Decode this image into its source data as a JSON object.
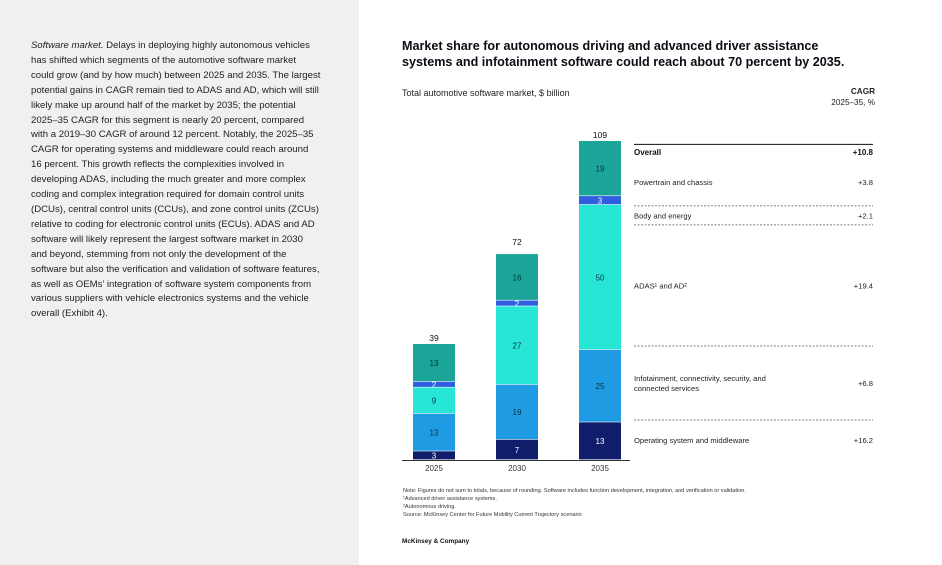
{
  "body_text": {
    "lead": "Software market.",
    "text": " Delays in deploying highly autonomous vehicles has shifted which segments of the automotive software market could grow (and by how much) between 2025 and 2035. The largest potential gains in CAGR remain tied to ADAS and AD, which will still likely make up around half of the market by 2035; the potential 2025–35 CAGR for this segment is nearly 20 percent, compared with a 2019–30 CAGR of around 12 percent. Notably, the 2025–35 CAGR for operating systems and middleware could reach around 16 percent. This growth reflects the complexities involved in developing ADAS, including the much greater and more complex coding and complex integration required for domain control units (DCUs), central control units (CCUs), and zone control units (ZCUs) relative to coding for electronic control units (ECUs). ADAS and AD software will likely represent the largest software market in 2030 and beyond, stemming from not only the development of the software but also the verification and validation of software features, as well as OEMs’ integration of software system components from various suppliers with vehicle electronics systems and the vehicle overall (Exhibit 4)."
  },
  "colors": {
    "operating_system": "#0f1d6b",
    "infotainment": "#1e9be3",
    "adas": "#27e6d6",
    "body_energy": "#2f5fe0",
    "powertrain": "#1aa598"
  },
  "chart_data": {
    "type": "bar",
    "stacked": true,
    "title": "Market share for autonomous driving and advanced driver assistance systems and infotainment software could reach about 70 percent by 2035.",
    "ylabel": "Total automotive software market, $ billion",
    "categories": [
      "2025",
      "2030",
      "2035"
    ],
    "totals": [
      39,
      72,
      109
    ],
    "series": [
      {
        "key": "operating_system",
        "name": "Operating system and middleware",
        "values": [
          3,
          7,
          13
        ],
        "cagr": "+16.2"
      },
      {
        "key": "infotainment",
        "name": "Infotainment, connectivity, security, and connected services",
        "values": [
          13,
          19,
          25
        ],
        "cagr": "+6.8"
      },
      {
        "key": "adas",
        "name": "ADAS¹ and AD²",
        "values": [
          9,
          27,
          50
        ],
        "cagr": "+19.4"
      },
      {
        "key": "body_energy",
        "name": "Body and energy",
        "values": [
          2,
          2,
          3
        ],
        "cagr": "+2.1"
      },
      {
        "key": "powertrain",
        "name": "Powertrain and chassis",
        "values": [
          13,
          16,
          19
        ],
        "cagr": "+3.8"
      }
    ],
    "overall": {
      "name": "Overall",
      "cagr": "+10.8"
    },
    "cagr_header_line1": "CAGR",
    "cagr_header_line2": "2025–35, %"
  },
  "notes": [
    "Note: Figures do not sum to totals, because of rounding. Software includes function development, integration, and verification or validation.",
    "¹Advanced driver assistance systems.",
    "²Autonomous driving.",
    "Source: McKinsey Center for Future Mobility Current Trajectory scenario"
  ],
  "brand": "McKinsey & Company"
}
